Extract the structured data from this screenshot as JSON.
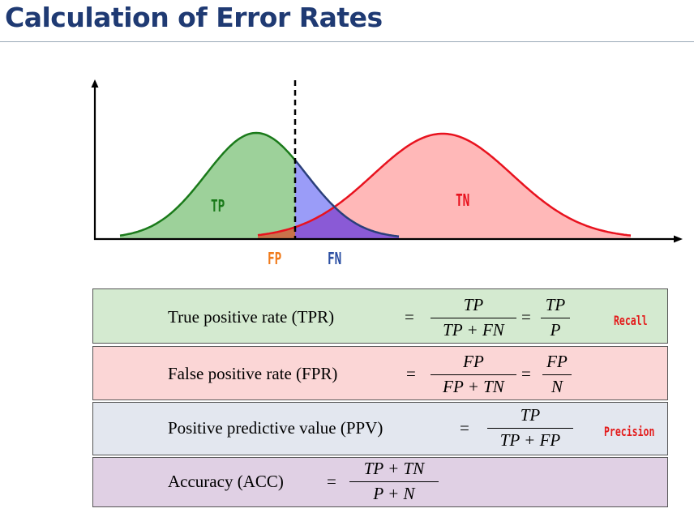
{
  "title": "Calculation of Error Rates",
  "diagram": {
    "labels": {
      "tp": "TP",
      "tn": "TN",
      "fp": "FP",
      "fn": "FN"
    },
    "colors": {
      "positive": "#1a7a1a",
      "negative": "#e8121e",
      "fp": "#f07a1a",
      "fn": "#2b4fa3",
      "overlap": "#8b5cc7"
    }
  },
  "formulas": [
    {
      "name": "True positive rate (TPR)",
      "frac1": {
        "num": "TP",
        "den": "TP + FN"
      },
      "frac2": {
        "num": "TP",
        "den": "P"
      },
      "tag": "Recall",
      "color": "#d4ead0"
    },
    {
      "name": "False positive rate (FPR)",
      "frac1": {
        "num": "FP",
        "den": "FP + TN"
      },
      "frac2": {
        "num": "FP",
        "den": "N"
      },
      "color": "#fbd6d6"
    },
    {
      "name": "Positive predictive value (PPV)",
      "frac1": {
        "num": "TP",
        "den": "TP + FP"
      },
      "tag": "Precision",
      "color": "#e3e7ef"
    },
    {
      "name": "Accuracy (ACC)",
      "frac1": {
        "num": "TP + TN",
        "den": "P + N"
      },
      "color": "#e0d0e4"
    }
  ]
}
